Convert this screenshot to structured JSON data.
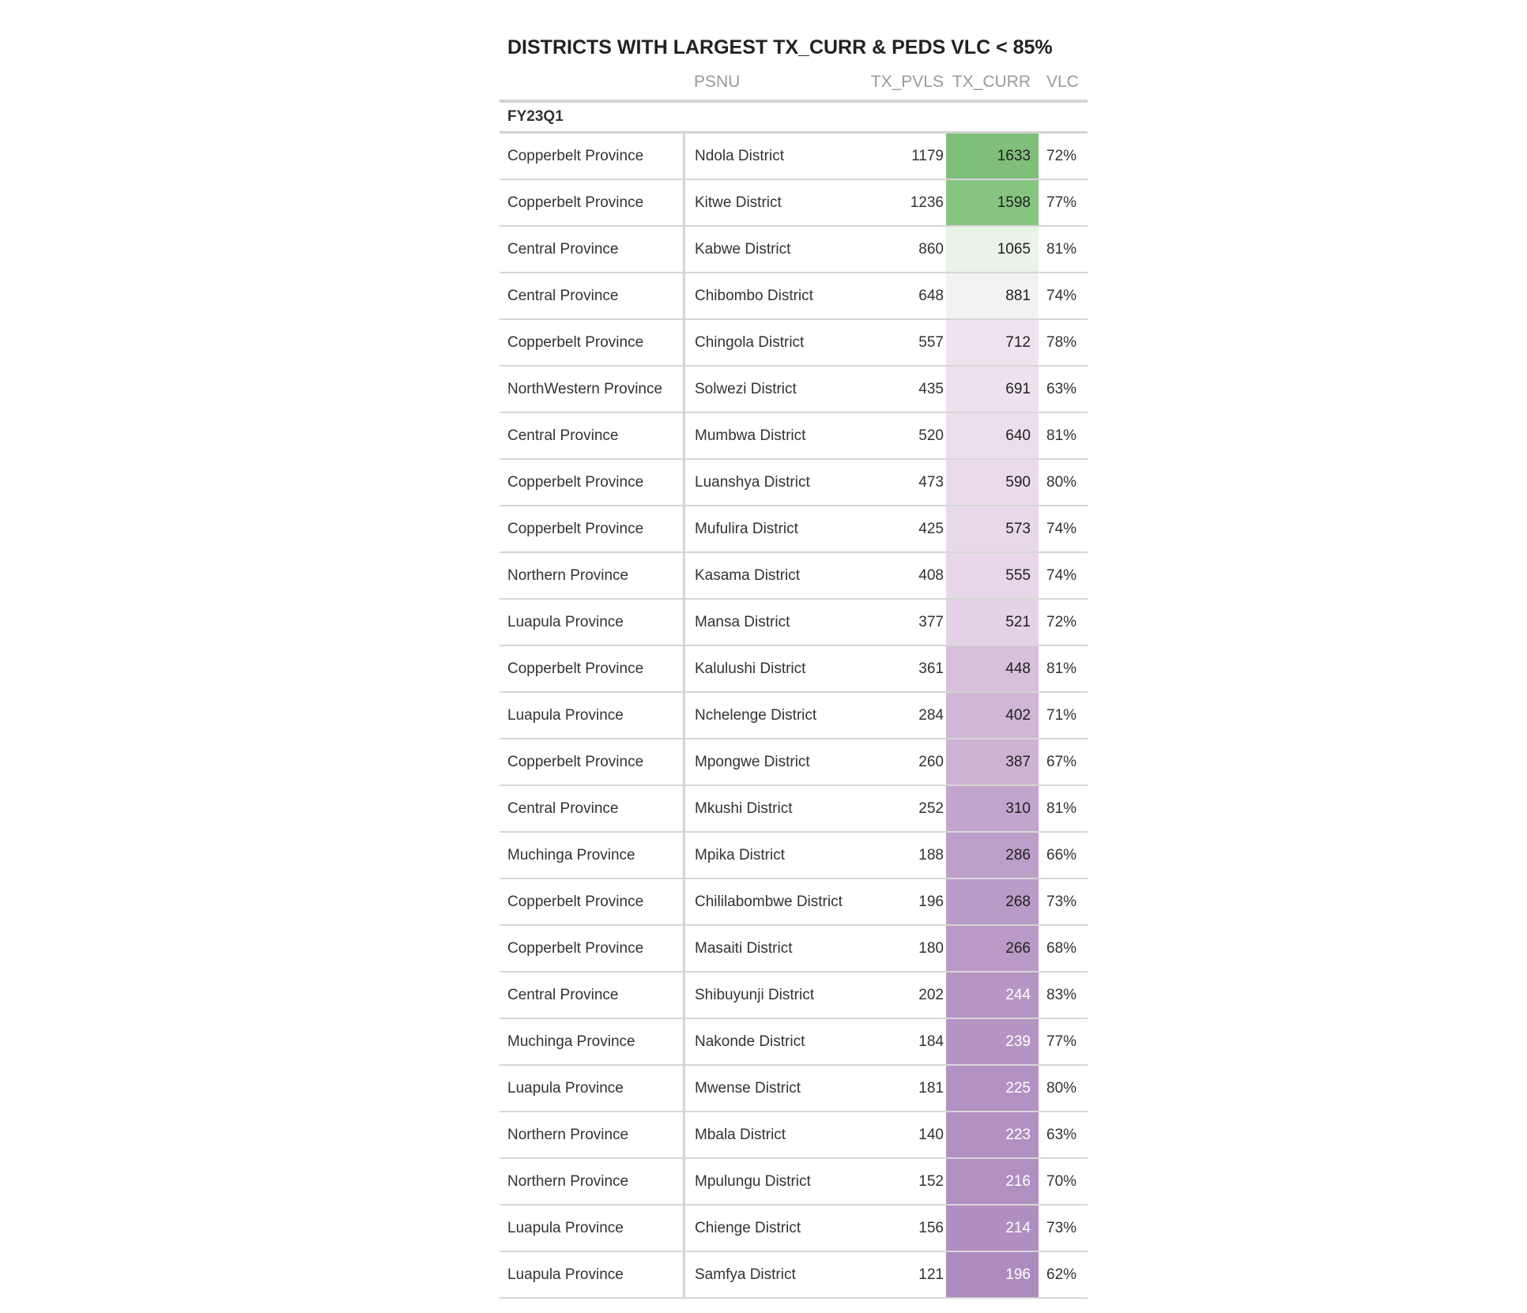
{
  "chart_data": {
    "type": "table",
    "title": "DISTRICTS WITH LARGEST TX_CURR & PEDS VLC < 85%",
    "columns": [
      "PSNU",
      "TX_PVLS",
      "TX_CURR",
      "VLC"
    ],
    "group": "FY23Q1",
    "rows": [
      {
        "province": "Copperbelt Province",
        "psnu": "Ndola District",
        "tx_pvls": "1179",
        "tx_curr": "1633",
        "vlc": "72%",
        "fill": "#7fbf7b",
        "text_color": "#222222"
      },
      {
        "province": "Copperbelt Province",
        "psnu": "Kitwe District",
        "tx_pvls": "1236",
        "tx_curr": "1598",
        "vlc": "77%",
        "fill": "#87c482",
        "text_color": "#222222"
      },
      {
        "province": "Central Province",
        "psnu": "Kabwe District",
        "tx_pvls": "860",
        "tx_curr": "1065",
        "vlc": "81%",
        "fill": "#e9f4e7",
        "text_color": "#222222"
      },
      {
        "province": "Central Province",
        "psnu": "Chibombo District",
        "tx_pvls": "648",
        "tx_curr": "881",
        "vlc": "74%",
        "fill": "#f3f1f4",
        "text_color": "#222222"
      },
      {
        "province": "Copperbelt Province",
        "psnu": "Chingola District",
        "tx_pvls": "557",
        "tx_curr": "712",
        "vlc": "78%",
        "fill": "#eee3ef",
        "text_color": "#222222"
      },
      {
        "province": "NorthWestern Province",
        "psnu": "Solwezi District",
        "tx_pvls": "435",
        "tx_curr": "691",
        "vlc": "63%",
        "fill": "#ede2ee",
        "text_color": "#222222"
      },
      {
        "province": "Central Province",
        "psnu": "Mumbwa District",
        "tx_pvls": "520",
        "tx_curr": "640",
        "vlc": "81%",
        "fill": "#ebdeec",
        "text_color": "#222222"
      },
      {
        "province": "Copperbelt Province",
        "psnu": "Luanshya District",
        "tx_pvls": "473",
        "tx_curr": "590",
        "vlc": "80%",
        "fill": "#e9dbea",
        "text_color": "#222222"
      },
      {
        "province": "Copperbelt Province",
        "psnu": "Mufulira District",
        "tx_pvls": "425",
        "tx_curr": "573",
        "vlc": "74%",
        "fill": "#e8d9e9",
        "text_color": "#222222"
      },
      {
        "province": "Northern Province",
        "psnu": "Kasama District",
        "tx_pvls": "408",
        "tx_curr": "555",
        "vlc": "74%",
        "fill": "#e7d7e8",
        "text_color": "#222222"
      },
      {
        "province": "Luapula Province",
        "psnu": "Mansa District",
        "tx_pvls": "377",
        "tx_curr": "521",
        "vlc": "72%",
        "fill": "#e4d2e6",
        "text_color": "#222222"
      },
      {
        "province": "Copperbelt Province",
        "psnu": "Kalulushi District",
        "tx_pvls": "361",
        "tx_curr": "448",
        "vlc": "81%",
        "fill": "#d8c0dc",
        "text_color": "#222222"
      },
      {
        "province": "Luapula Province",
        "psnu": "Nchelenge District",
        "tx_pvls": "284",
        "tx_curr": "402",
        "vlc": "71%",
        "fill": "#d1b6d7",
        "text_color": "#222222"
      },
      {
        "province": "Copperbelt Province",
        "psnu": "Mpongwe District",
        "tx_pvls": "260",
        "tx_curr": "387",
        "vlc": "67%",
        "fill": "#cfb3d5",
        "text_color": "#222222"
      },
      {
        "province": "Central Province",
        "psnu": "Mkushi District",
        "tx_pvls": "252",
        "tx_curr": "310",
        "vlc": "81%",
        "fill": "#c2a4cd",
        "text_color": "#222222"
      },
      {
        "province": "Muchinga Province",
        "psnu": "Mpika District",
        "tx_pvls": "188",
        "tx_curr": "286",
        "vlc": "66%",
        "fill": "#bd9ec9",
        "text_color": "#222222"
      },
      {
        "province": "Copperbelt Province",
        "psnu": "Chililabombwe District",
        "tx_pvls": "196",
        "tx_curr": "268",
        "vlc": "73%",
        "fill": "#ba9ac7",
        "text_color": "#222222"
      },
      {
        "province": "Copperbelt Province",
        "psnu": "Masaiti District",
        "tx_pvls": "180",
        "tx_curr": "266",
        "vlc": "68%",
        "fill": "#ba99c6",
        "text_color": "#222222"
      },
      {
        "province": "Central Province",
        "psnu": "Shibuyunji District",
        "tx_pvls": "202",
        "tx_curr": "244",
        "vlc": "83%",
        "fill": "#b695c4",
        "text_color": "#ffffff"
      },
      {
        "province": "Muchinga Province",
        "psnu": "Nakonde District",
        "tx_pvls": "184",
        "tx_curr": "239",
        "vlc": "77%",
        "fill": "#b594c3",
        "text_color": "#ffffff"
      },
      {
        "province": "Luapula Province",
        "psnu": "Mwense District",
        "tx_pvls": "181",
        "tx_curr": "225",
        "vlc": "80%",
        "fill": "#b391c2",
        "text_color": "#ffffff"
      },
      {
        "province": "Northern Province",
        "psnu": "Mbala District",
        "tx_pvls": "140",
        "tx_curr": "223",
        "vlc": "63%",
        "fill": "#b291c2",
        "text_color": "#ffffff"
      },
      {
        "province": "Northern Province",
        "psnu": "Mpulungu District",
        "tx_pvls": "152",
        "tx_curr": "216",
        "vlc": "70%",
        "fill": "#b18fc1",
        "text_color": "#ffffff"
      },
      {
        "province": "Luapula Province",
        "psnu": "Chienge District",
        "tx_pvls": "156",
        "tx_curr": "214",
        "vlc": "73%",
        "fill": "#b08ec1",
        "text_color": "#ffffff"
      },
      {
        "province": "Luapula Province",
        "psnu": "Samfya District",
        "tx_pvls": "121",
        "tx_curr": "196",
        "vlc": "62%",
        "fill": "#ae8bbf",
        "text_color": "#ffffff"
      }
    ]
  }
}
